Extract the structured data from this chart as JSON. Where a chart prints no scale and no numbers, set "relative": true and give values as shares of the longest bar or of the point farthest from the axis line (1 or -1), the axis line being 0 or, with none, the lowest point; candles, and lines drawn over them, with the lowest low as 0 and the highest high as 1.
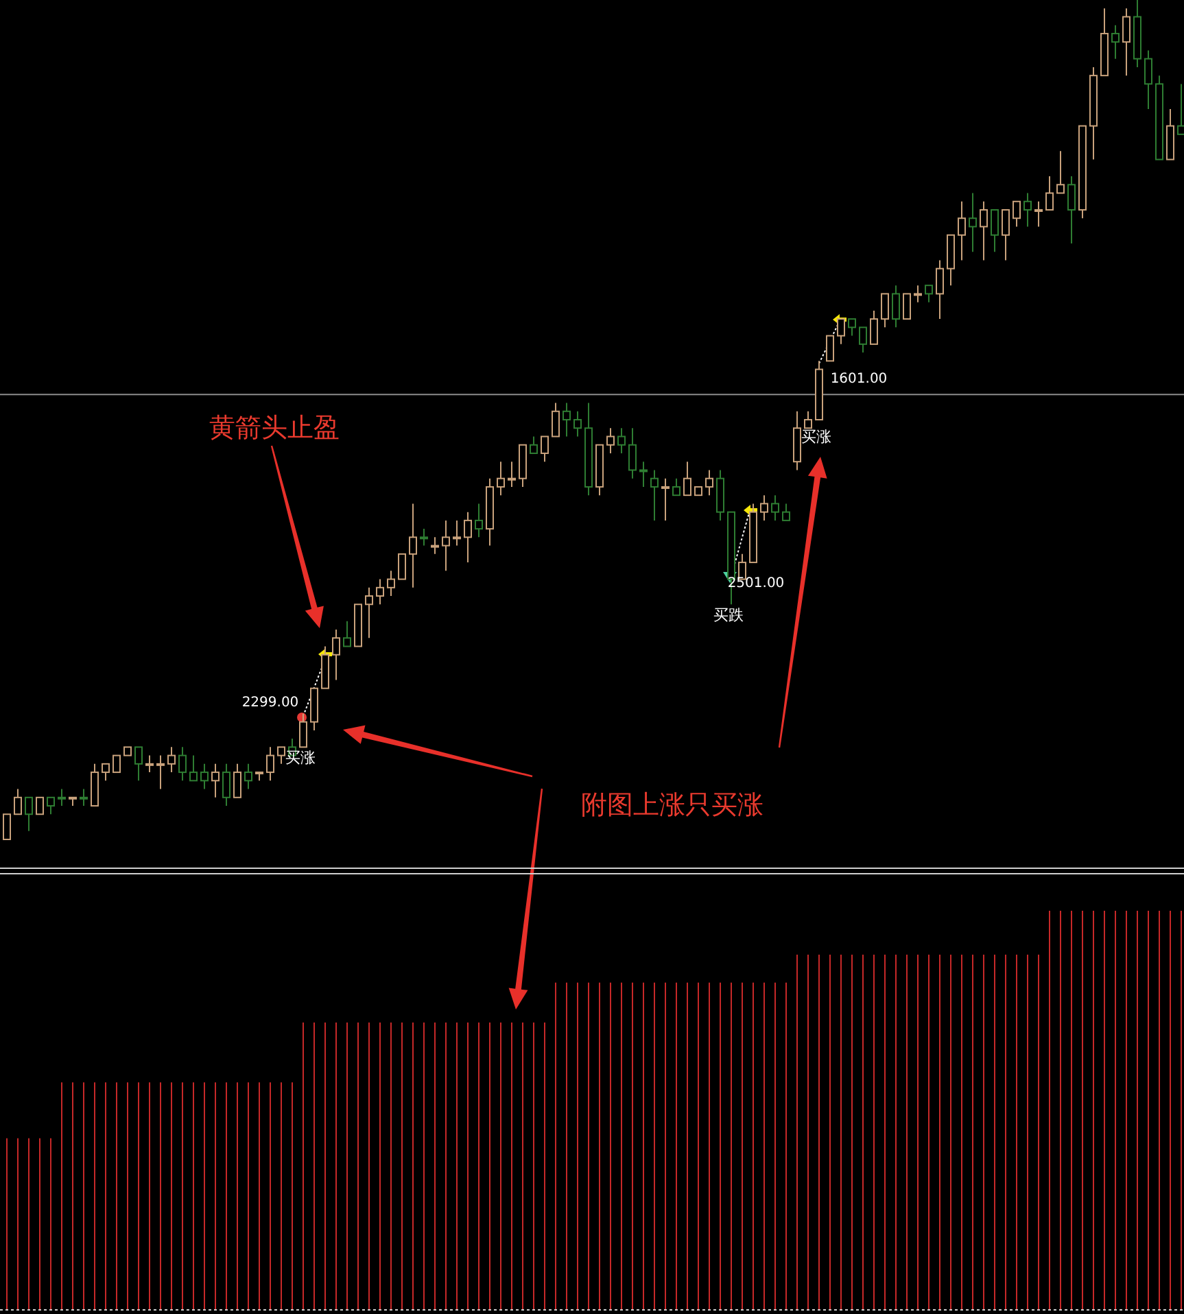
{
  "chart_data": [
    {
      "type": "candlestick",
      "relative": true,
      "categories": [
        null,
        null,
        null,
        null,
        null,
        null,
        null,
        null,
        null,
        null,
        null,
        null,
        null,
        null,
        null,
        null,
        null,
        null,
        null,
        null,
        null,
        null,
        null,
        null,
        null,
        null,
        null,
        null,
        null,
        null,
        null,
        null,
        null,
        null,
        null,
        null,
        null,
        null,
        null,
        null,
        null,
        null,
        null,
        null,
        null,
        null,
        null,
        null,
        null,
        null,
        null,
        null,
        null,
        null,
        null,
        null,
        null,
        null,
        null,
        null,
        null,
        null,
        null,
        null,
        null,
        null,
        null,
        null,
        null,
        null,
        null,
        null,
        null,
        null,
        null,
        null,
        null,
        null,
        null,
        null,
        null,
        null,
        null,
        null,
        null,
        null,
        null,
        null,
        null,
        null,
        null,
        null,
        null,
        null,
        null,
        null,
        null,
        null,
        null,
        null,
        null,
        null,
        null,
        null,
        null,
        null,
        null,
        null
      ],
      "ohlc": [
        [
          0,
          0.03,
          0,
          0.03
        ],
        [
          0.03,
          0.06,
          0.03,
          0.05
        ],
        [
          0.05,
          0.05,
          0.01,
          0.03
        ],
        [
          0.03,
          0.05,
          0.03,
          0.05
        ],
        [
          0.05,
          0.05,
          0.03,
          0.04
        ],
        [
          0.05,
          0.06,
          0.04,
          0.05
        ],
        [
          0.05,
          0.05,
          0.04,
          0.05
        ],
        [
          0.05,
          0.06,
          0.04,
          0.05
        ],
        [
          0.04,
          0.09,
          0.04,
          0.08
        ],
        [
          0.08,
          0.09,
          0.07,
          0.09
        ],
        [
          0.08,
          0.1,
          0.08,
          0.1
        ],
        [
          0.1,
          0.11,
          0.1,
          0.11
        ],
        [
          0.11,
          0.11,
          0.07,
          0.09
        ],
        [
          0.09,
          0.1,
          0.08,
          0.09
        ],
        [
          0.09,
          0.1,
          0.06,
          0.09
        ],
        [
          0.09,
          0.11,
          0.08,
          0.1
        ],
        [
          0.1,
          0.11,
          0.07,
          0.08
        ],
        [
          0.08,
          0.1,
          0.07,
          0.07
        ],
        [
          0.08,
          0.09,
          0.06,
          0.07
        ],
        [
          0.07,
          0.09,
          0.05,
          0.08
        ],
        [
          0.08,
          0.09,
          0.04,
          0.05
        ],
        [
          0.05,
          0.09,
          0.05,
          0.08
        ],
        [
          0.08,
          0.09,
          0.06,
          0.07
        ],
        [
          0.08,
          0.08,
          0.07,
          0.08
        ],
        [
          0.08,
          0.11,
          0.07,
          0.1
        ],
        [
          0.1,
          0.11,
          0.09,
          0.11
        ],
        [
          0.11,
          0.12,
          0.1,
          0.1
        ],
        [
          0.11,
          0.15,
          0.11,
          0.14
        ],
        [
          0.14,
          0.18,
          0.13,
          0.18
        ],
        [
          0.18,
          0.23,
          0.18,
          0.22
        ],
        [
          0.22,
          0.25,
          0.19,
          0.24
        ],
        [
          0.24,
          0.26,
          0.23,
          0.23
        ],
        [
          0.23,
          0.28,
          0.23,
          0.28
        ],
        [
          0.28,
          0.3,
          0.24,
          0.29
        ],
        [
          0.29,
          0.31,
          0.28,
          0.3
        ],
        [
          0.3,
          0.32,
          0.29,
          0.31
        ],
        [
          0.31,
          0.34,
          0.31,
          0.34
        ],
        [
          0.34,
          0.4,
          0.3,
          0.36
        ],
        [
          0.36,
          0.37,
          0.35,
          0.36
        ],
        [
          0.35,
          0.36,
          0.34,
          0.35
        ],
        [
          0.35,
          0.38,
          0.32,
          0.36
        ],
        [
          0.36,
          0.38,
          0.35,
          0.36
        ],
        [
          0.36,
          0.39,
          0.33,
          0.38
        ],
        [
          0.38,
          0.4,
          0.36,
          0.37
        ],
        [
          0.37,
          0.43,
          0.35,
          0.42
        ],
        [
          0.42,
          0.45,
          0.41,
          0.43
        ],
        [
          0.43,
          0.45,
          0.42,
          0.43
        ],
        [
          0.43,
          0.47,
          0.42,
          0.47
        ],
        [
          0.47,
          0.48,
          0.46,
          0.46
        ],
        [
          0.46,
          0.48,
          0.45,
          0.48
        ],
        [
          0.48,
          0.52,
          0.48,
          0.51
        ],
        [
          0.51,
          0.52,
          0.48,
          0.5
        ],
        [
          0.5,
          0.51,
          0.48,
          0.49
        ],
        [
          0.49,
          0.52,
          0.41,
          0.42
        ],
        [
          0.42,
          0.47,
          0.41,
          0.47
        ],
        [
          0.47,
          0.49,
          0.46,
          0.48
        ],
        [
          0.48,
          0.49,
          0.46,
          0.47
        ],
        [
          0.47,
          0.49,
          0.43,
          0.44
        ],
        [
          0.44,
          0.45,
          0.42,
          0.44
        ],
        [
          0.43,
          0.44,
          0.38,
          0.42
        ],
        [
          0.42,
          0.43,
          0.38,
          0.42
        ],
        [
          0.42,
          0.43,
          0.41,
          0.41
        ],
        [
          0.41,
          0.45,
          0.41,
          0.43
        ],
        [
          0.41,
          0.42,
          0.41,
          0.42
        ],
        [
          0.42,
          0.44,
          0.41,
          0.43
        ],
        [
          0.43,
          0.44,
          0.38,
          0.39
        ],
        [
          0.39,
          0.39,
          0.28,
          0.31
        ],
        [
          0.31,
          0.34,
          0.31,
          0.33
        ],
        [
          0.33,
          0.4,
          0.33,
          0.39
        ],
        [
          0.39,
          0.41,
          0.38,
          0.4
        ],
        [
          0.4,
          0.41,
          0.38,
          0.39
        ],
        [
          0.39,
          0.4,
          0.38,
          0.38
        ],
        [
          0.45,
          0.51,
          0.44,
          0.49
        ],
        [
          0.49,
          0.51,
          0.49,
          0.5
        ],
        [
          0.5,
          0.57,
          0.5,
          0.56
        ],
        [
          0.57,
          0.6,
          0.57,
          0.6
        ],
        [
          0.6,
          0.62,
          0.59,
          0.62
        ],
        [
          0.62,
          0.62,
          0.6,
          0.61
        ],
        [
          0.61,
          0.61,
          0.58,
          0.59
        ],
        [
          0.59,
          0.63,
          0.59,
          0.62
        ],
        [
          0.62,
          0.65,
          0.61,
          0.65
        ],
        [
          0.65,
          0.66,
          0.61,
          0.62
        ],
        [
          0.62,
          0.65,
          0.62,
          0.65
        ],
        [
          0.65,
          0.66,
          0.64,
          0.65
        ],
        [
          0.66,
          0.66,
          0.64,
          0.65
        ],
        [
          0.65,
          0.69,
          0.62,
          0.68
        ],
        [
          0.68,
          0.72,
          0.66,
          0.72
        ],
        [
          0.72,
          0.76,
          0.69,
          0.74
        ],
        [
          0.74,
          0.77,
          0.7,
          0.73
        ],
        [
          0.73,
          0.76,
          0.69,
          0.75
        ],
        [
          0.75,
          0.75,
          0.7,
          0.72
        ],
        [
          0.72,
          0.75,
          0.69,
          0.75
        ],
        [
          0.74,
          0.76,
          0.73,
          0.76
        ],
        [
          0.76,
          0.77,
          0.73,
          0.75
        ],
        [
          0.75,
          0.76,
          0.73,
          0.75
        ],
        [
          0.75,
          0.79,
          0.75,
          0.77
        ],
        [
          0.77,
          0.82,
          0.77,
          0.78
        ],
        [
          0.78,
          0.79,
          0.71,
          0.75
        ],
        [
          0.75,
          0.85,
          0.74,
          0.85
        ],
        [
          0.85,
          0.92,
          0.81,
          0.91
        ],
        [
          0.91,
          0.99,
          0.91,
          0.96
        ],
        [
          0.96,
          0.97,
          0.93,
          0.95
        ],
        [
          0.95,
          0.99,
          0.91,
          0.98
        ],
        [
          0.98,
          1,
          0.92,
          0.93
        ],
        [
          0.93,
          0.94,
          0.87,
          0.9
        ],
        [
          0.9,
          0.91,
          0.81,
          0.81
        ],
        [
          0.81,
          0.87,
          0.81,
          0.85
        ],
        [
          0.85,
          0.9,
          0.84,
          0.84
        ]
      ],
      "colors": [
        "#c9a27c",
        "#c9a27c",
        "#2e7d32",
        "#c9a27c",
        "#2e7d32",
        "#2e7d32",
        "#c9a27c",
        "#2e7d32",
        "#c9a27c",
        "#c9a27c",
        "#c9a27c",
        "#c9a27c",
        "#2e7d32",
        "#c9a27c",
        "#c9a27c",
        "#c9a27c",
        "#2e7d32",
        "#2e7d32",
        "#2e7d32",
        "#c9a27c",
        "#2e7d32",
        "#c9a27c",
        "#2e7d32",
        "#c9a27c",
        "#c9a27c",
        "#c9a27c",
        "#2e7d32",
        "#c9a27c",
        "#c9a27c",
        "#c9a27c",
        "#c9a27c",
        "#2e7d32",
        "#c9a27c",
        "#c9a27c",
        "#c9a27c",
        "#c9a27c",
        "#c9a27c",
        "#c9a27c",
        "#2e7d32",
        "#c9a27c",
        "#c9a27c",
        "#c9a27c",
        "#c9a27c",
        "#2e7d32",
        "#c9a27c",
        "#c9a27c",
        "#c9a27c",
        "#c9a27c",
        "#2e7d32",
        "#c9a27c",
        "#c9a27c",
        "#2e7d32",
        "#2e7d32",
        "#2e7d32",
        "#c9a27c",
        "#c9a27c",
        "#2e7d32",
        "#2e7d32",
        "#2e7d32",
        "#2e7d32",
        "#c9a27c",
        "#2e7d32",
        "#c9a27c",
        "#c9a27c",
        "#c9a27c",
        "#2e7d32",
        "#2e7d32",
        "#c9a27c",
        "#c9a27c",
        "#c9a27c",
        "#2e7d32",
        "#2e7d32",
        "#c9a27c",
        "#c9a27c",
        "#c9a27c",
        "#c9a27c",
        "#c9a27c",
        "#2e7d32",
        "#2e7d32",
        "#c9a27c",
        "#c9a27c",
        "#2e7d32",
        "#c9a27c",
        "#c9a27c",
        "#2e7d32",
        "#c9a27c",
        "#c9a27c",
        "#c9a27c",
        "#2e7d32",
        "#c9a27c",
        "#2e7d32",
        "#c9a27c",
        "#c9a27c",
        "#2e7d32",
        "#c9a27c",
        "#c9a27c",
        "#c9a27c",
        "#2e7d32",
        "#c9a27c",
        "#c9a27c",
        "#c9a27c",
        "#2e7d32",
        "#c9a27c",
        "#2e7d32",
        "#2e7d32",
        "#2e7d32",
        "#c9a27c",
        "#2e7d32"
      ],
      "ref_lines": [
        {
          "axis": "y",
          "value": 0.53,
          "color": "#8c8c8c"
        }
      ],
      "annotations": [
        "黄箭头止盈",
        "附图上涨只买涨",
        "2299.00",
        "买涨",
        "2501.00",
        "买跌",
        "1601.00",
        "买涨"
      ]
    },
    {
      "type": "bar",
      "relative": true,
      "color": "#c62828",
      "categories": [
        null,
        null,
        null,
        null,
        null,
        null,
        null,
        null,
        null,
        null,
        null,
        null,
        null,
        null,
        null,
        null,
        null,
        null,
        null,
        null,
        null,
        null,
        null,
        null,
        null,
        null,
        null,
        null,
        null,
        null,
        null,
        null,
        null,
        null,
        null,
        null,
        null,
        null,
        null,
        null,
        null,
        null,
        null,
        null,
        null,
        null,
        null,
        null,
        null,
        null,
        null,
        null,
        null,
        null,
        null,
        null,
        null,
        null,
        null,
        null,
        null,
        null,
        null,
        null,
        null,
        null,
        null,
        null,
        null,
        null,
        null,
        null,
        null,
        null,
        null,
        null,
        null,
        null,
        null,
        null,
        null,
        null,
        null,
        null,
        null,
        null,
        null,
        null,
        null,
        null,
        null,
        null,
        null,
        null,
        null,
        null,
        null,
        null,
        null,
        null,
        null,
        null,
        null,
        null,
        null,
        null,
        null,
        null
      ],
      "values": [
        0.43,
        0.43,
        0.43,
        0.43,
        0.43,
        0.57,
        0.57,
        0.57,
        0.57,
        0.57,
        0.57,
        0.57,
        0.57,
        0.57,
        0.57,
        0.57,
        0.57,
        0.57,
        0.57,
        0.57,
        0.57,
        0.57,
        0.57,
        0.57,
        0.57,
        0.57,
        0.57,
        0.72,
        0.72,
        0.72,
        0.72,
        0.72,
        0.72,
        0.72,
        0.72,
        0.72,
        0.72,
        0.72,
        0.72,
        0.72,
        0.72,
        0.72,
        0.72,
        0.72,
        0.72,
        0.72,
        0.72,
        0.72,
        0.72,
        0.72,
        0.82,
        0.82,
        0.82,
        0.82,
        0.82,
        0.82,
        0.82,
        0.82,
        0.82,
        0.82,
        0.82,
        0.82,
        0.82,
        0.82,
        0.82,
        0.82,
        0.82,
        0.82,
        0.82,
        0.82,
        0.82,
        0.82,
        0.89,
        0.89,
        0.89,
        0.89,
        0.89,
        0.89,
        0.89,
        0.89,
        0.89,
        0.89,
        0.89,
        0.89,
        0.89,
        0.89,
        0.89,
        0.89,
        0.89,
        0.89,
        0.89,
        0.89,
        0.89,
        0.89,
        0.89,
        1,
        1,
        1,
        1,
        1,
        1,
        1,
        1,
        1,
        1,
        1,
        1,
        1
      ]
    }
  ]
}
